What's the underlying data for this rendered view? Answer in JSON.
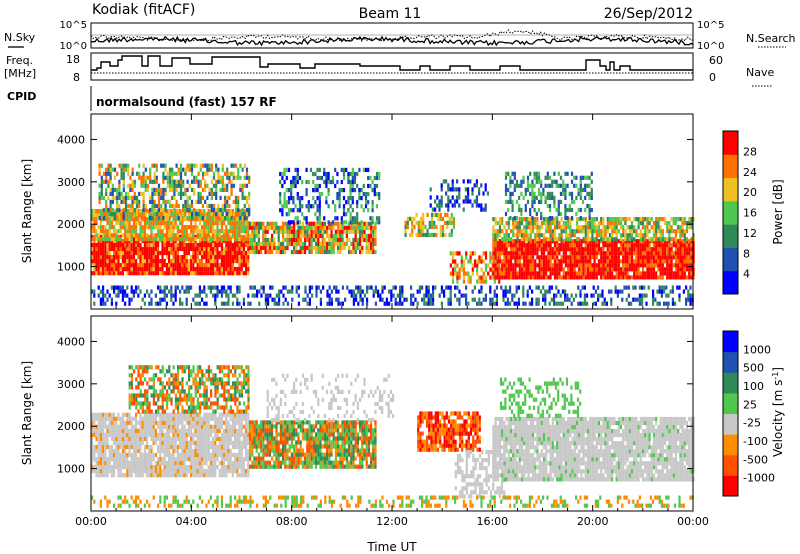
{
  "header": {
    "station": "Kodiak (fitACF)",
    "beam": "Beam 11",
    "date": "26/Sep/2012"
  },
  "noise_panel": {
    "left_label": "N.Sky",
    "right_label": "N.Search",
    "ticks_left": [
      "10^5",
      "10^0"
    ],
    "ticks_right": [
      "10^5",
      "10^0"
    ]
  },
  "freq_panel": {
    "left_label": "Freq.",
    "left_unit": "[MHz]",
    "ticks_left": [
      "18",
      "8"
    ],
    "ticks_right": [
      "60",
      "0"
    ],
    "right_label": "Nave"
  },
  "cpid": {
    "label": "CPID",
    "value": "normalsound (fast) 157 RF"
  },
  "chart_data": [
    {
      "type": "heatmap",
      "name": "power",
      "ylabel": "Slant Range [km]",
      "yticks": [
        "1000",
        "2000",
        "3000",
        "4000"
      ],
      "ylim": [
        0,
        4600
      ],
      "xlabel": "Time UT",
      "xticks": [
        "00:00",
        "04:00",
        "08:00",
        "12:00",
        "16:00",
        "20:00",
        "00:00"
      ],
      "xlim": [
        0,
        24
      ],
      "colorbar": {
        "label": "Power [dB]",
        "ticks": [
          "4",
          "8",
          "12",
          "16",
          "20",
          "24",
          "28"
        ],
        "colors": [
          "#0000ff",
          "#2050b0",
          "#2e8b57",
          "#50c850",
          "#f0c020",
          "#ff7000",
          "#ff0000"
        ]
      }
    },
    {
      "type": "heatmap",
      "name": "velocity",
      "ylabel": "Slant Range [km]",
      "yticks": [
        "1000",
        "2000",
        "3000",
        "4000"
      ],
      "ylim": [
        0,
        4600
      ],
      "xlabel": "Time UT",
      "xticks": [
        "00:00",
        "04:00",
        "08:00",
        "12:00",
        "16:00",
        "20:00",
        "00:00"
      ],
      "xlim": [
        0,
        24
      ],
      "colorbar": {
        "label": "Velocity",
        "unit": "[m s",
        "unit_exp": "-1",
        "unit_end": "]",
        "ticks": [
          "1000",
          "500",
          "100",
          "25",
          "-25",
          "-100",
          "-500",
          "-1000"
        ],
        "colors": [
          "#0000ff",
          "#2050b0",
          "#2e8b57",
          "#50c850",
          "#c8c8c8",
          "#ff8c00",
          "#ff5000",
          "#ff0000"
        ]
      }
    }
  ]
}
